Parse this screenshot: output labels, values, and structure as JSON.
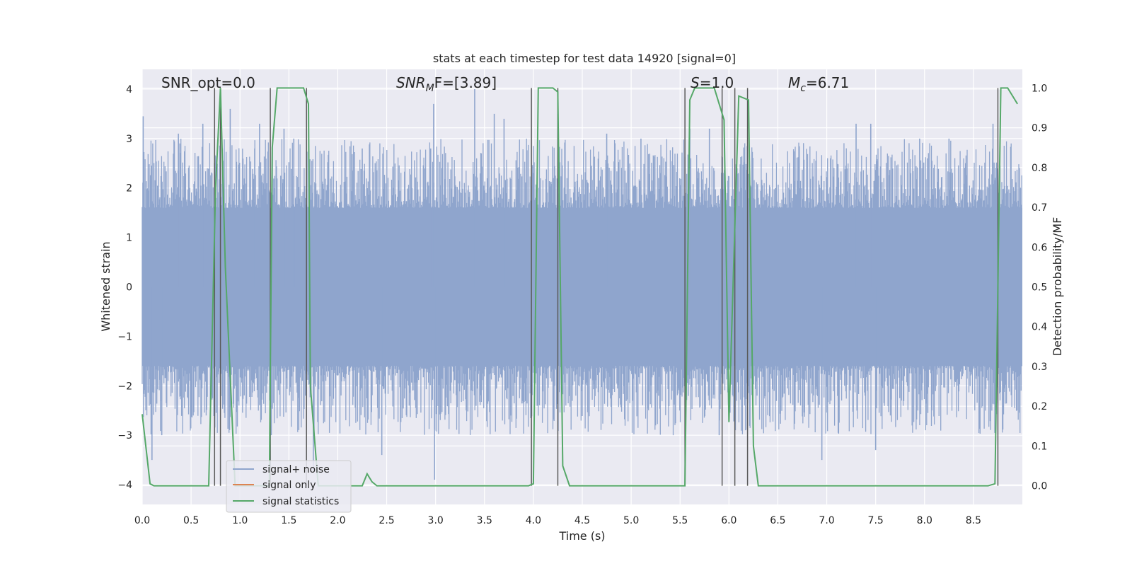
{
  "chart_data": {
    "type": "line",
    "title": "stats at each timestep for test data 14920 [signal=0]",
    "xlabel": "Time (s)",
    "ylabel_left": "Whitened strain",
    "ylabel_right": "Detection probability/MF",
    "xlim": [
      0.0,
      9.0
    ],
    "ylim_left": [
      -4.4,
      4.4
    ],
    "ylim_right": [
      -0.047,
      1.047
    ],
    "x_ticks": [
      0.0,
      0.5,
      1.0,
      1.5,
      2.0,
      2.5,
      3.0,
      3.5,
      4.0,
      4.5,
      5.0,
      5.5,
      6.0,
      6.5,
      7.0,
      7.5,
      8.0,
      8.5
    ],
    "x_tick_labels": [
      "0.0",
      "0.5",
      "1.0",
      "1.5",
      "2.0",
      "2.5",
      "3.0",
      "3.5",
      "4.0",
      "4.5",
      "5.0",
      "5.5",
      "6.0",
      "6.5",
      "7.0",
      "7.5",
      "8.0",
      "8.5"
    ],
    "y_left_ticks": [
      -4,
      -3,
      -2,
      -1,
      0,
      1,
      2,
      3,
      4
    ],
    "y_left_tick_labels": [
      "−4",
      "−3",
      "−2",
      "−1",
      "0",
      "1",
      "2",
      "3",
      "4"
    ],
    "y_right_ticks": [
      0.0,
      0.1,
      0.2,
      0.3,
      0.4,
      0.5,
      0.6,
      0.7,
      0.8,
      0.9,
      1.0
    ],
    "y_right_tick_labels": [
      "0.0",
      "0.1",
      "0.2",
      "0.3",
      "0.4",
      "0.5",
      "0.6",
      "0.7",
      "0.8",
      "0.9",
      "1.0"
    ],
    "grid": true,
    "legend_position": "lower-left",
    "annotations": {
      "snr_opt": "SNR_opt=0.0",
      "snr_mf_main": "SNR",
      "snr_mf_sub": "M",
      "snr_mf_rest": "F=[3.89]",
      "s_main": "S",
      "s_rest": "=1.0",
      "mc_main": "M",
      "mc_sub": "c",
      "mc_rest": "=6.71"
    },
    "series": [
      {
        "name": "signal+ noise",
        "color": "#8fa5cd",
        "style": "dense noise, typical amplitude ±1.6, peaks to about ±4",
        "amplitude_core": 1.6,
        "peak_values": [
          [
            0.01,
            3.45
          ],
          [
            0.1,
            -3.5
          ],
          [
            0.2,
            -3.0
          ],
          [
            0.37,
            3.1
          ],
          [
            0.62,
            3.3
          ],
          [
            0.82,
            2.8
          ],
          [
            0.9,
            3.6
          ],
          [
            1.15,
            2.8
          ],
          [
            1.2,
            3.3
          ],
          [
            1.32,
            -3.0
          ],
          [
            1.45,
            3.2
          ],
          [
            1.55,
            3.0
          ],
          [
            1.75,
            -3.7
          ],
          [
            2.25,
            2.8
          ],
          [
            2.45,
            -3.4
          ],
          [
            2.95,
            2.8
          ],
          [
            2.98,
            3.7
          ],
          [
            2.99,
            -3.9
          ],
          [
            3.4,
            4.0
          ],
          [
            3.6,
            3.5
          ],
          [
            3.7,
            3.4
          ],
          [
            4.25,
            3.5
          ],
          [
            4.75,
            3.1
          ],
          [
            5.1,
            3.0
          ],
          [
            5.6,
            3.2
          ],
          [
            5.8,
            3.2
          ],
          [
            5.9,
            -3.0
          ],
          [
            6.15,
            2.4
          ],
          [
            6.95,
            -3.5
          ],
          [
            7.3,
            3.3
          ],
          [
            7.45,
            3.3
          ],
          [
            7.5,
            -3.3
          ],
          [
            7.95,
            3.0
          ],
          [
            8.25,
            3.0
          ],
          [
            8.7,
            3.3
          ]
        ]
      },
      {
        "name": "signal only",
        "color": "#dd8452",
        "values_note": "zero signal, no visible trace"
      },
      {
        "name": "signal statistics",
        "color": "#55a868",
        "x": [
          0.0,
          0.08,
          0.12,
          0.3,
          0.68,
          0.75,
          0.8,
          0.85,
          0.95,
          1.3,
          1.33,
          1.38,
          1.65,
          1.7,
          1.72,
          1.8,
          2.25,
          2.3,
          2.35,
          2.4,
          3.95,
          4.0,
          4.05,
          4.2,
          4.25,
          4.3,
          4.37,
          4.5,
          5.55,
          5.6,
          5.65,
          5.85,
          5.95,
          6.0,
          6.1,
          6.2,
          6.25,
          6.3,
          8.65,
          8.72,
          8.78,
          8.85,
          8.95
        ],
        "y": [
          0.18,
          0.005,
          0.0,
          0.0,
          0.0,
          0.75,
          1.0,
          0.55,
          0.0,
          0.0,
          0.85,
          1.0,
          1.0,
          0.96,
          0.25,
          0.0,
          0.0,
          0.03,
          0.01,
          0.0,
          0.0,
          0.005,
          1.0,
          1.0,
          0.99,
          0.05,
          0.0,
          0.0,
          0.0,
          0.97,
          1.0,
          1.0,
          0.92,
          0.16,
          0.98,
          0.97,
          0.1,
          0.0,
          0.0,
          0.005,
          1.0,
          1.0,
          0.96
        ]
      }
    ],
    "vertical_lines": [
      0.74,
      0.8,
      1.31,
      1.68,
      3.98,
      4.25,
      5.55,
      5.93,
      6.06,
      6.19,
      8.75
    ]
  }
}
